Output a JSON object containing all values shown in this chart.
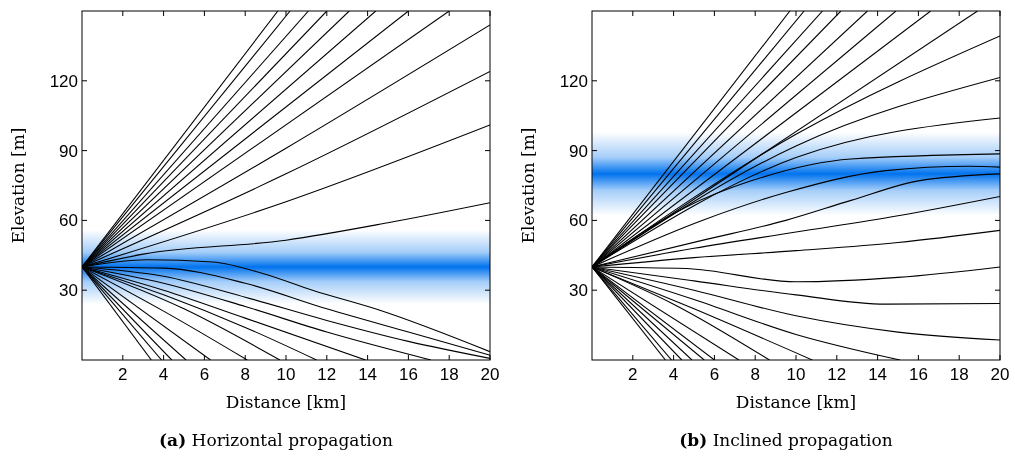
{
  "chart_data": [
    {
      "type": "line",
      "title": "(a) Horizontal propagation",
      "xlabel": "Distance [km]",
      "ylabel": "Elevation [m]",
      "xlim": [
        0,
        20
      ],
      "ylim": [
        0,
        150
      ],
      "xticks": [
        2,
        4,
        6,
        8,
        10,
        12,
        14,
        16,
        18,
        20
      ],
      "yticks": [
        30,
        60,
        90,
        120
      ],
      "bands": [
        {
          "axis": "y",
          "from": 24,
          "to": 56,
          "color": "#0073ee"
        }
      ],
      "series": [
        {
          "color": "#000000",
          "x": [
            0,
            9.6
          ],
          "values": [
            40,
            150
          ]
        },
        {
          "color": "#000000",
          "x": [
            0,
            10.2
          ],
          "values": [
            40,
            150
          ]
        },
        {
          "color": "#000000",
          "x": [
            0,
            11.1
          ],
          "values": [
            40,
            150
          ]
        },
        {
          "color": "#000000",
          "x": [
            0,
            12
          ],
          "values": [
            40,
            150
          ]
        },
        {
          "color": "#000000",
          "x": [
            0,
            13.1
          ],
          "values": [
            40,
            150
          ]
        },
        {
          "color": "#000000",
          "x": [
            0,
            14.4
          ],
          "values": [
            40,
            150
          ]
        },
        {
          "color": "#000000",
          "x": [
            0,
            16
          ],
          "values": [
            40,
            150
          ]
        },
        {
          "color": "#000000",
          "x": [
            0,
            18
          ],
          "values": [
            40,
            150
          ]
        },
        {
          "color": "#000000",
          "x": [
            0,
            10,
            20
          ],
          "values": [
            40,
            91,
            144
          ]
        },
        {
          "color": "#000000",
          "x": [
            0,
            10,
            20
          ],
          "values": [
            40,
            80,
            124
          ]
        },
        {
          "color": "#000000",
          "x": [
            0,
            10,
            20
          ],
          "values": [
            40,
            68,
            101
          ]
        },
        {
          "color": "#000000",
          "x": [
            0,
            3,
            10,
            15,
            20
          ],
          "values": [
            40,
            45.5,
            51.5,
            59,
            67.6
          ]
        },
        {
          "color": "#000000",
          "x": [
            0,
            3.2,
            6.4,
            8.9,
            11.3,
            14.6,
            20
          ],
          "values": [
            40,
            43.1,
            42.1,
            37.1,
            30,
            21.4,
            3.6
          ]
        },
        {
          "color": "#000000",
          "x": [
            0,
            4,
            8,
            12,
            16,
            20
          ],
          "values": [
            40,
            39.5,
            33,
            22,
            12,
            2.1
          ]
        },
        {
          "color": "#000000",
          "x": [
            0,
            4,
            8,
            12,
            16,
            20
          ],
          "values": [
            40,
            36,
            27,
            17,
            8,
            0.7
          ]
        },
        {
          "color": "#000000",
          "x": [
            0,
            4,
            8,
            12,
            17.1
          ],
          "values": [
            40,
            33,
            23,
            12,
            0
          ]
        },
        {
          "color": "#000000",
          "x": [
            0,
            4,
            8,
            13.9
          ],
          "values": [
            40,
            30,
            18,
            0
          ]
        },
        {
          "color": "#000000",
          "x": [
            0,
            4,
            8,
            11.5
          ],
          "values": [
            40,
            28,
            14,
            0
          ]
        },
        {
          "color": "#000000",
          "x": [
            0,
            5,
            9.7
          ],
          "values": [
            40,
            22,
            0
          ]
        },
        {
          "color": "#000000",
          "x": [
            0,
            4,
            8.1
          ],
          "values": [
            40,
            21,
            0
          ]
        },
        {
          "color": "#000000",
          "x": [
            0,
            6.3
          ],
          "values": [
            40,
            0
          ]
        },
        {
          "color": "#000000",
          "x": [
            0,
            5.1
          ],
          "values": [
            40,
            0
          ]
        },
        {
          "color": "#000000",
          "x": [
            0,
            4.4
          ],
          "values": [
            40,
            0
          ]
        },
        {
          "color": "#000000",
          "x": [
            0,
            3.9
          ],
          "values": [
            40,
            0
          ]
        },
        {
          "color": "#000000",
          "x": [
            0,
            3.4
          ],
          "values": [
            40,
            0
          ]
        }
      ]
    },
    {
      "type": "line",
      "title": "(b) Inclined propagation",
      "xlabel": "Distance [km]",
      "ylabel": "Elevation [m]",
      "xlim": [
        0,
        20
      ],
      "ylim": [
        0,
        150
      ],
      "xticks": [
        2,
        4,
        6,
        8,
        10,
        12,
        14,
        16,
        18,
        20
      ],
      "yticks": [
        30,
        60,
        90,
        120
      ],
      "bands": [
        {
          "axis": "y",
          "from": 62,
          "to": 98,
          "color": "#0073ee"
        }
      ],
      "series": [
        {
          "color": "#000000",
          "x": [
            0,
            9.7
          ],
          "values": [
            40,
            150
          ]
        },
        {
          "color": "#000000",
          "x": [
            0,
            10.4
          ],
          "values": [
            40,
            150
          ]
        },
        {
          "color": "#000000",
          "x": [
            0,
            11.3
          ],
          "values": [
            40,
            150
          ]
        },
        {
          "color": "#000000",
          "x": [
            0,
            12.2
          ],
          "values": [
            40,
            150
          ]
        },
        {
          "color": "#000000",
          "x": [
            0,
            13.5
          ],
          "values": [
            40,
            150
          ]
        },
        {
          "color": "#000000",
          "x": [
            0,
            14.9
          ],
          "values": [
            40,
            150
          ]
        },
        {
          "color": "#000000",
          "x": [
            0,
            16.6
          ],
          "values": [
            40,
            150
          ]
        },
        {
          "color": "#000000",
          "x": [
            0,
            18.9
          ],
          "values": [
            40,
            150
          ]
        },
        {
          "color": "#000000",
          "x": [
            0,
            10,
            20
          ],
          "values": [
            40,
            97,
            139.3
          ]
        },
        {
          "color": "#000000",
          "x": [
            0,
            10,
            20
          ],
          "values": [
            40,
            92,
            121.4
          ]
        },
        {
          "color": "#000000",
          "x": [
            0,
            10,
            20
          ],
          "values": [
            40,
            87,
            104
          ]
        },
        {
          "color": "#000000",
          "x": [
            0,
            4.6,
            7.8,
            12.7,
            20
          ],
          "values": [
            40,
            65.7,
            77,
            86.4,
            88.6
          ]
        },
        {
          "color": "#000000",
          "x": [
            0,
            5.4,
            9.5,
            14.4,
            18.5,
            20
          ],
          "values": [
            40,
            60,
            72,
            81.4,
            83.3,
            82.9
          ]
        },
        {
          "color": "#000000",
          "x": [
            0,
            5.4,
            9.5,
            12.7,
            16,
            20
          ],
          "values": [
            40,
            51.4,
            60,
            68.6,
            77,
            80
          ]
        },
        {
          "color": "#000000",
          "x": [
            0,
            5,
            10,
            15,
            20
          ],
          "values": [
            40,
            48,
            55,
            62,
            70.3
          ]
        },
        {
          "color": "#000000",
          "x": [
            0,
            5,
            10,
            15,
            20
          ],
          "values": [
            40,
            44,
            47,
            50.5,
            55.7
          ]
        },
        {
          "color": "#000000",
          "x": [
            0,
            4.6,
            10,
            15,
            20
          ],
          "values": [
            40,
            39.3,
            33.6,
            35.5,
            40
          ]
        },
        {
          "color": "#000000",
          "x": [
            0,
            5,
            10,
            14.4,
            20
          ],
          "values": [
            40,
            34,
            28,
            24,
            24.3
          ]
        },
        {
          "color": "#000000",
          "x": [
            0,
            5,
            10,
            15,
            20
          ],
          "values": [
            40,
            30,
            19,
            12,
            8.6
          ]
        },
        {
          "color": "#000000",
          "x": [
            0,
            5,
            10,
            15.1
          ],
          "values": [
            40,
            26,
            11,
            0
          ]
        },
        {
          "color": "#000000",
          "x": [
            0,
            5,
            10.8
          ],
          "values": [
            40,
            22,
            0
          ]
        },
        {
          "color": "#000000",
          "x": [
            0,
            4,
            8.7
          ],
          "values": [
            40,
            24,
            0
          ]
        },
        {
          "color": "#000000",
          "x": [
            0,
            7.2
          ],
          "values": [
            40,
            0
          ]
        },
        {
          "color": "#000000",
          "x": [
            0,
            6
          ],
          "values": [
            40,
            0
          ]
        },
        {
          "color": "#000000",
          "x": [
            0,
            5.5
          ],
          "values": [
            40,
            0
          ]
        },
        {
          "color": "#000000",
          "x": [
            0,
            4.9
          ],
          "values": [
            40,
            0
          ]
        },
        {
          "color": "#000000",
          "x": [
            0,
            4.4
          ],
          "values": [
            40,
            0
          ]
        },
        {
          "color": "#000000",
          "x": [
            0,
            3.9
          ],
          "values": [
            40,
            0
          ]
        },
        {
          "color": "#000000",
          "x": [
            0,
            3.6
          ],
          "values": [
            40,
            0
          ]
        }
      ]
    }
  ]
}
